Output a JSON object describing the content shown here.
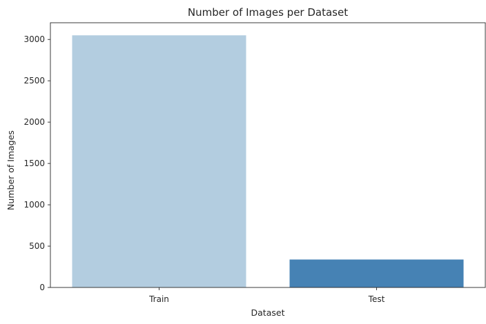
{
  "chart_data": {
    "type": "bar",
    "title": "Number of Images per Dataset",
    "xlabel": "Dataset",
    "ylabel": "Number of Images",
    "categories": [
      "Train",
      "Test"
    ],
    "values": [
      3050,
      338
    ],
    "colors": [
      "#b3cde0",
      "#4682b4"
    ],
    "ylim": [
      0,
      3202
    ],
    "yticks": [
      0,
      500,
      1000,
      1500,
      2000,
      2500,
      3000
    ],
    "grid": false,
    "legend": "none"
  }
}
